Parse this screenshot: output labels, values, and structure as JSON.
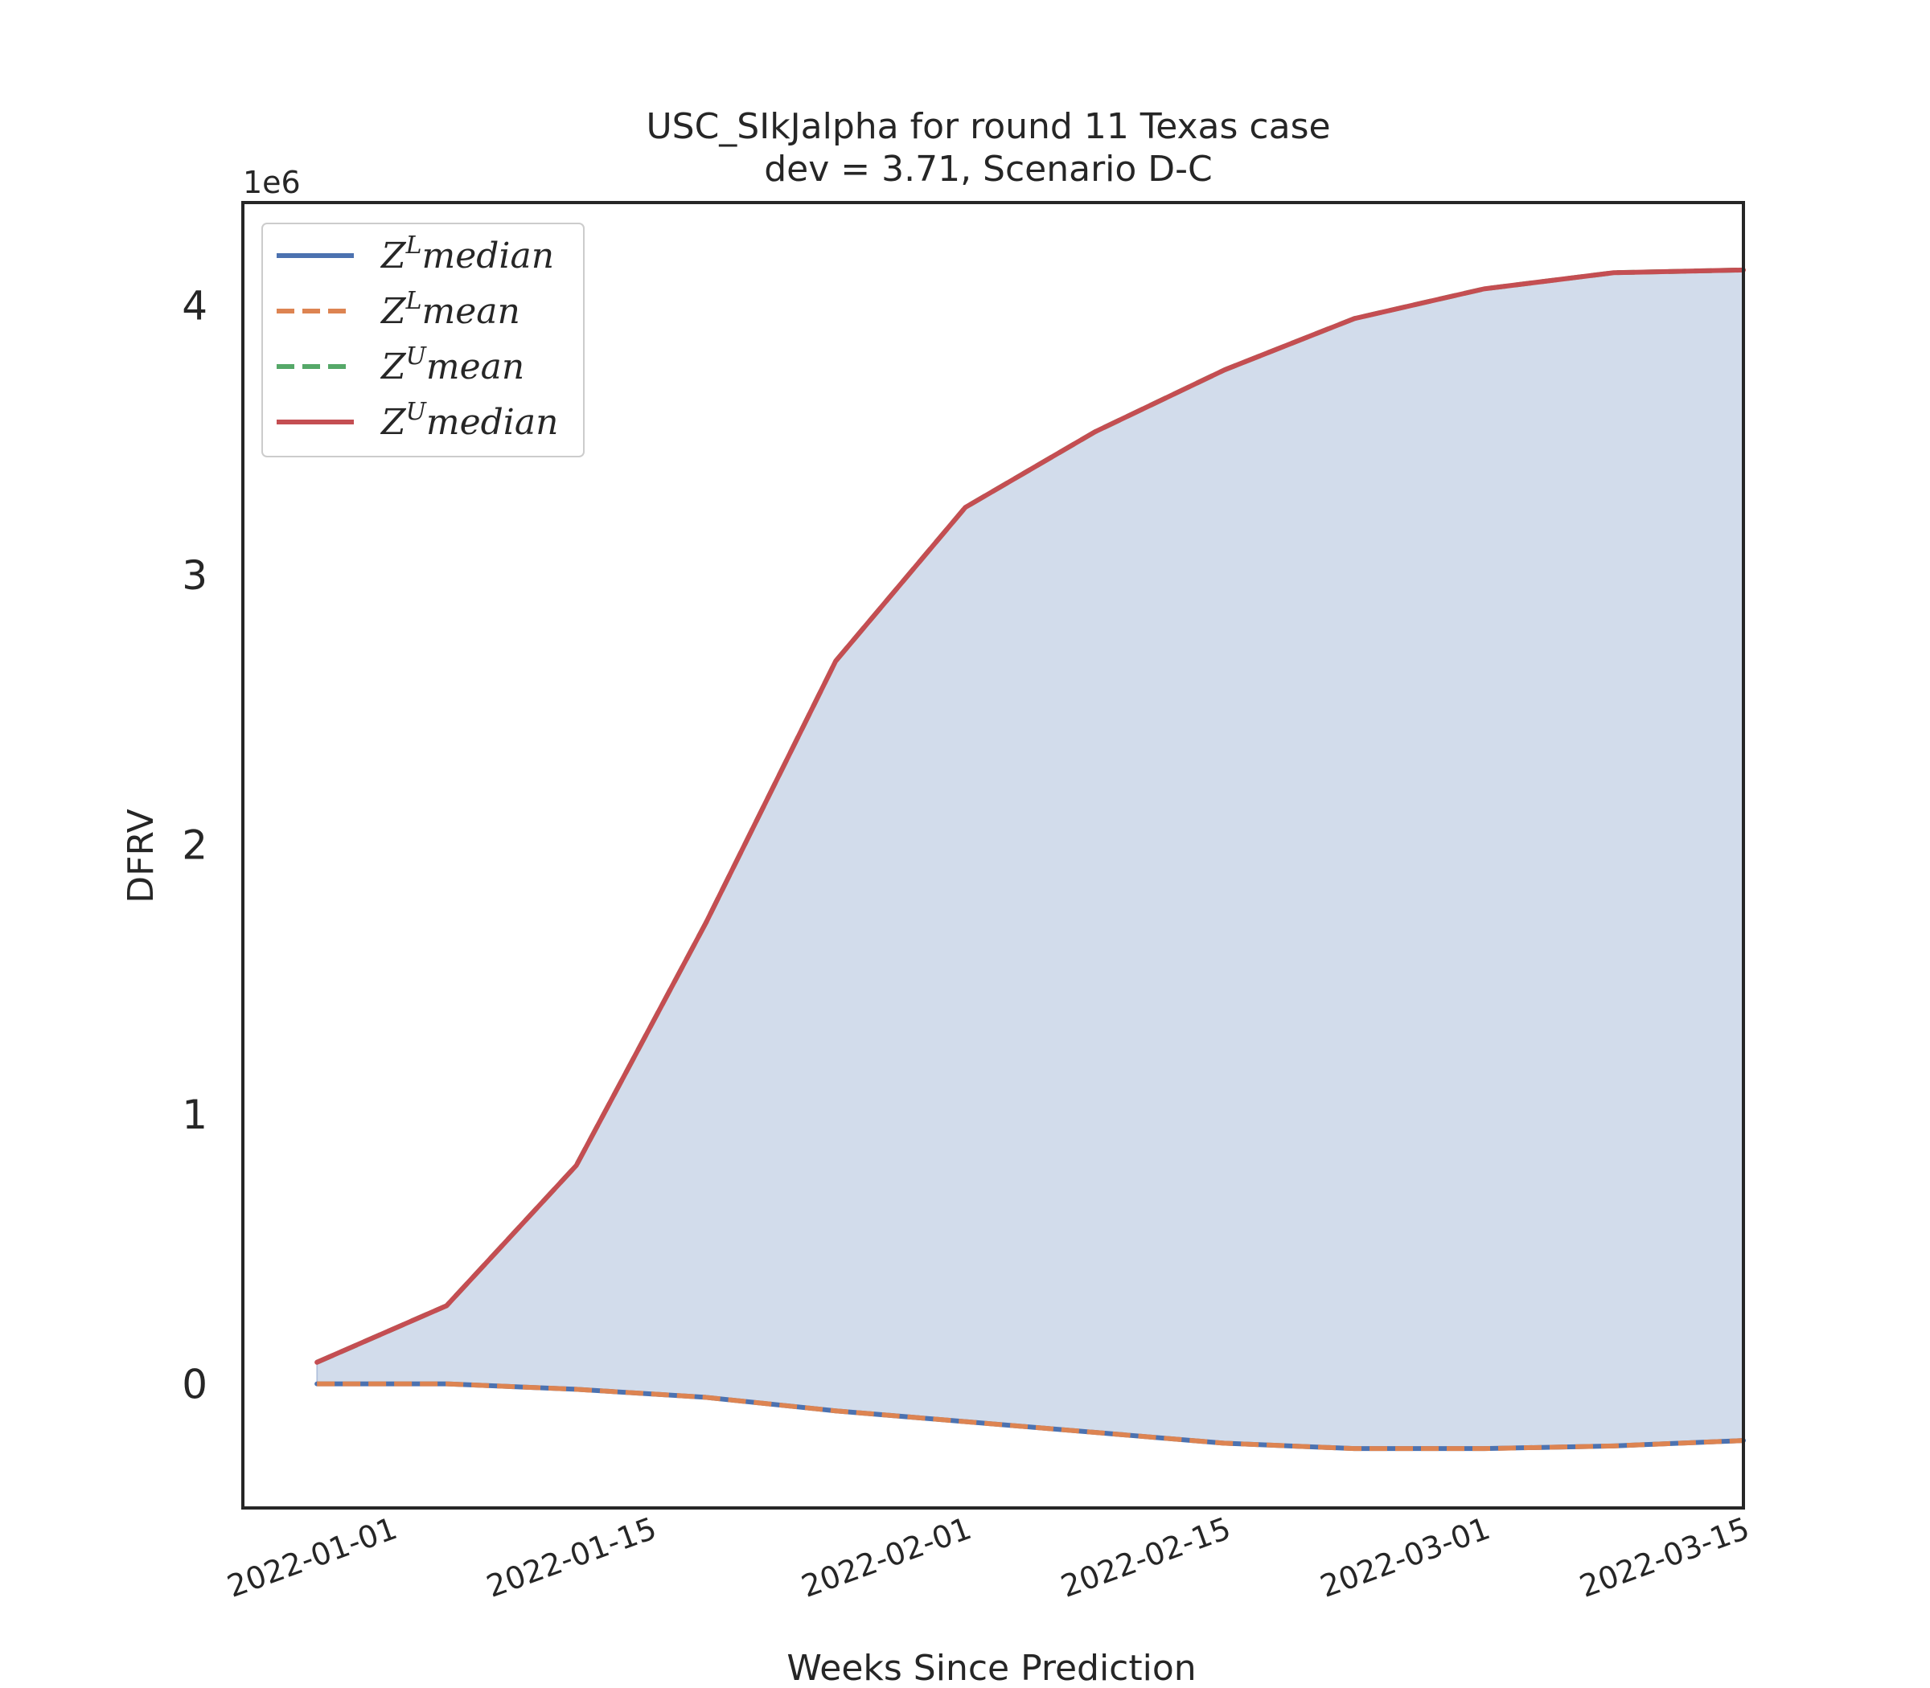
{
  "chart_data": {
    "type": "line",
    "title_line1": "USC_SIkJalpha for round 11 Texas case",
    "title_line2": "dev = 3.71, Scenario D-C",
    "xlabel": "Weeks Since Prediction",
    "ylabel": "DFRV",
    "y_offset_label": "1e6",
    "y_scale": 1000000,
    "ylim": [
      -460000,
      4380000
    ],
    "xlim": [
      "2021-12-24",
      "2022-03-15"
    ],
    "x_ticks": [
      "2022-01-01",
      "2022-01-15",
      "2022-02-01",
      "2022-02-15",
      "2022-03-01",
      "2022-03-15"
    ],
    "y_ticks": [
      0,
      1,
      2,
      3,
      4
    ],
    "x": [
      "2021-12-28",
      "2022-01-04",
      "2022-01-11",
      "2022-01-18",
      "2022-01-25",
      "2022-02-01",
      "2022-02-08",
      "2022-02-15",
      "2022-02-22",
      "2022-03-01",
      "2022-03-08",
      "2022-03-15"
    ],
    "series": [
      {
        "name": "Z^L median",
        "color": "#4c72b0",
        "style": "solid",
        "values": [
          0,
          0,
          -20000,
          -50000,
          -100000,
          -140000,
          -180000,
          -220000,
          -240000,
          -240000,
          -230000,
          -210000
        ]
      },
      {
        "name": "Z^L mean",
        "color": "#dd8452",
        "style": "dashed",
        "values": [
          0,
          0,
          -20000,
          -50000,
          -100000,
          -140000,
          -180000,
          -220000,
          -240000,
          -240000,
          -230000,
          -210000
        ]
      },
      {
        "name": "Z^U mean",
        "color": "#55a868",
        "style": "dashed",
        "values": [
          80000,
          290000,
          810000,
          1710000,
          2680000,
          3250000,
          3530000,
          3760000,
          3950000,
          4060000,
          4120000,
          4130000
        ]
      },
      {
        "name": "Z^U median",
        "color": "#c44e52",
        "style": "solid",
        "values": [
          80000,
          290000,
          810000,
          1710000,
          2680000,
          3250000,
          3530000,
          3760000,
          3950000,
          4060000,
          4120000,
          4130000
        ]
      }
    ],
    "fill_between": {
      "lower": "Z^L median",
      "upper": "Z^U median",
      "color": "#4c72b0",
      "alpha": 0.25
    },
    "legend": {
      "placement": "top-left",
      "entries": [
        {
          "base": "Z",
          "sup": "L",
          "rest": "median"
        },
        {
          "base": "Z",
          "sup": "L",
          "rest": "mean"
        },
        {
          "base": "Z",
          "sup": "U",
          "rest": "mean"
        },
        {
          "base": "Z",
          "sup": "U",
          "rest": "median"
        }
      ]
    },
    "grid": false
  }
}
